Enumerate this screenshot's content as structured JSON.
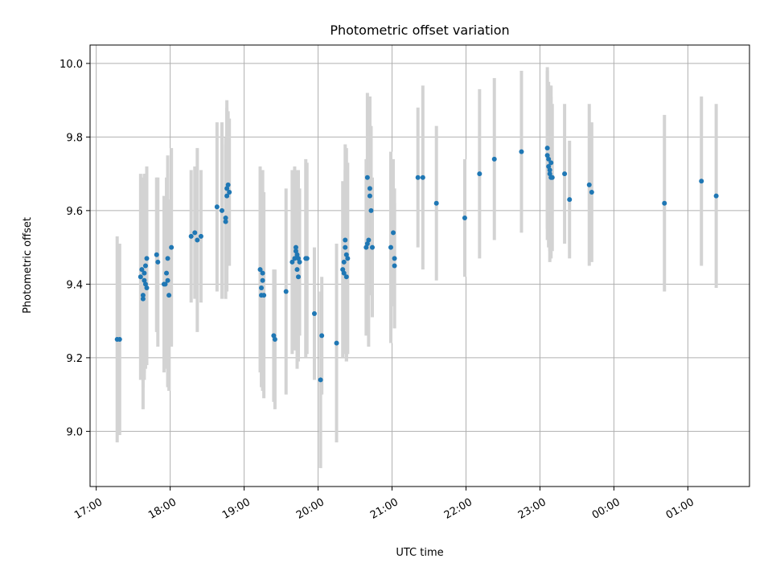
{
  "chart_data": {
    "type": "scatter",
    "title": "Photometric offset variation",
    "xlabel": "UTC time",
    "ylabel": "Photometric offset",
    "xlim": [
      "16:55",
      "01:50"
    ],
    "ylim": [
      8.85,
      10.05
    ],
    "xticks": [
      "17:00",
      "18:00",
      "19:00",
      "20:00",
      "21:00",
      "22:00",
      "23:00",
      "00:00",
      "01:00"
    ],
    "yticks": [
      "9.0",
      "9.2",
      "9.4",
      "9.6",
      "9.8",
      "10.0"
    ],
    "grid": true,
    "colors": {
      "point": "#1f77b4",
      "errorbar": "#d3d3d3",
      "grid": "#b0b0b0"
    },
    "points": [
      {
        "t": "17:17",
        "y": 9.25,
        "err": 0.28
      },
      {
        "t": "17:19",
        "y": 9.25,
        "err": 0.26
      },
      {
        "t": "17:36",
        "y": 9.42,
        "err": 0.28
      },
      {
        "t": "17:37",
        "y": 9.44,
        "err": 0.25
      },
      {
        "t": "17:38",
        "y": 9.37,
        "err": 0.25
      },
      {
        "t": "17:38",
        "y": 9.36,
        "err": 0.3
      },
      {
        "t": "17:39",
        "y": 9.41,
        "err": 0.27
      },
      {
        "t": "17:39",
        "y": 9.43,
        "err": 0.27
      },
      {
        "t": "17:40",
        "y": 9.45,
        "err": 0.25
      },
      {
        "t": "17:40",
        "y": 9.4,
        "err": 0.23
      },
      {
        "t": "17:41",
        "y": 9.47,
        "err": 0.25
      },
      {
        "t": "17:41",
        "y": 9.39,
        "err": 0.21
      },
      {
        "t": "17:49",
        "y": 9.48,
        "err": 0.21
      },
      {
        "t": "17:50",
        "y": 9.46,
        "err": 0.23
      },
      {
        "t": "17:55",
        "y": 9.4,
        "err": 0.24
      },
      {
        "t": "17:56",
        "y": 9.4,
        "err": 0.22
      },
      {
        "t": "17:57",
        "y": 9.43,
        "err": 0.26
      },
      {
        "t": "17:58",
        "y": 9.47,
        "err": 0.28
      },
      {
        "t": "17:58",
        "y": 9.41,
        "err": 0.29
      },
      {
        "t": "17:59",
        "y": 9.37,
        "err": 0.26
      },
      {
        "t": "18:01",
        "y": 9.5,
        "err": 0.27
      },
      {
        "t": "18:17",
        "y": 9.53,
        "err": 0.18
      },
      {
        "t": "18:20",
        "y": 9.54,
        "err": 0.18
      },
      {
        "t": "18:22",
        "y": 9.52,
        "err": 0.25
      },
      {
        "t": "18:25",
        "y": 9.53,
        "err": 0.18
      },
      {
        "t": "18:38",
        "y": 9.61,
        "err": 0.23
      },
      {
        "t": "18:42",
        "y": 9.6,
        "err": 0.24
      },
      {
        "t": "18:45",
        "y": 9.58,
        "err": 0.22
      },
      {
        "t": "18:45",
        "y": 9.57,
        "err": 0.21
      },
      {
        "t": "18:46",
        "y": 9.64,
        "err": 0.26
      },
      {
        "t": "18:46",
        "y": 9.66,
        "err": 0.22
      },
      {
        "t": "18:47",
        "y": 9.67,
        "err": 0.2
      },
      {
        "t": "18:48",
        "y": 9.65,
        "err": 0.2
      },
      {
        "t": "19:13",
        "y": 9.44,
        "err": 0.28
      },
      {
        "t": "19:14",
        "y": 9.39,
        "err": 0.27
      },
      {
        "t": "19:14",
        "y": 9.37,
        "err": 0.25
      },
      {
        "t": "19:15",
        "y": 9.43,
        "err": 0.28
      },
      {
        "t": "19:15",
        "y": 9.41,
        "err": 0.3
      },
      {
        "t": "19:16",
        "y": 9.37,
        "err": 0.28
      },
      {
        "t": "19:24",
        "y": 9.26,
        "err": 0.18
      },
      {
        "t": "19:25",
        "y": 9.25,
        "err": 0.19
      },
      {
        "t": "19:34",
        "y": 9.38,
        "err": 0.28
      },
      {
        "t": "19:39",
        "y": 9.46,
        "err": 0.25
      },
      {
        "t": "19:41",
        "y": 9.47,
        "err": 0.25
      },
      {
        "t": "19:42",
        "y": 9.49,
        "err": 0.22
      },
      {
        "t": "19:42",
        "y": 9.5,
        "err": 0.21
      },
      {
        "t": "19:43",
        "y": 9.44,
        "err": 0.27
      },
      {
        "t": "19:43",
        "y": 9.48,
        "err": 0.2
      },
      {
        "t": "19:44",
        "y": 9.42,
        "err": 0.23
      },
      {
        "t": "19:44",
        "y": 9.47,
        "err": 0.24
      },
      {
        "t": "19:45",
        "y": 9.46,
        "err": 0.2
      },
      {
        "t": "19:50",
        "y": 9.47,
        "err": 0.27
      },
      {
        "t": "19:51",
        "y": 9.47,
        "err": 0.26
      },
      {
        "t": "19:57",
        "y": 9.32,
        "err": 0.18
      },
      {
        "t": "20:02",
        "y": 9.14,
        "err": 0.24
      },
      {
        "t": "20:03",
        "y": 9.26,
        "err": 0.16
      },
      {
        "t": "20:15",
        "y": 9.24,
        "err": 0.27
      },
      {
        "t": "20:20",
        "y": 9.44,
        "err": 0.24
      },
      {
        "t": "20:21",
        "y": 9.46,
        "err": 0.21
      },
      {
        "t": "20:21",
        "y": 9.43,
        "err": 0.22
      },
      {
        "t": "20:22",
        "y": 9.5,
        "err": 0.21
      },
      {
        "t": "20:22",
        "y": 9.52,
        "err": 0.26
      },
      {
        "t": "20:23",
        "y": 9.48,
        "err": 0.29
      },
      {
        "t": "20:23",
        "y": 9.42,
        "err": 0.23
      },
      {
        "t": "20:24",
        "y": 9.47,
        "err": 0.26
      },
      {
        "t": "20:39",
        "y": 9.5,
        "err": 0.24
      },
      {
        "t": "20:40",
        "y": 9.51,
        "err": 0.23
      },
      {
        "t": "20:40",
        "y": 9.69,
        "err": 0.23
      },
      {
        "t": "20:41",
        "y": 9.52,
        "err": 0.29
      },
      {
        "t": "20:42",
        "y": 9.64,
        "err": 0.27
      },
      {
        "t": "20:42",
        "y": 9.66,
        "err": 0.25
      },
      {
        "t": "20:43",
        "y": 9.6,
        "err": 0.23
      },
      {
        "t": "20:44",
        "y": 9.5,
        "err": 0.19
      },
      {
        "t": "20:59",
        "y": 9.5,
        "err": 0.26
      },
      {
        "t": "21:01",
        "y": 9.54,
        "err": 0.2
      },
      {
        "t": "21:02",
        "y": 9.47,
        "err": 0.19
      },
      {
        "t": "21:02",
        "y": 9.45,
        "err": 0.17
      },
      {
        "t": "21:21",
        "y": 9.69,
        "err": 0.19
      },
      {
        "t": "21:25",
        "y": 9.69,
        "err": 0.25
      },
      {
        "t": "21:36",
        "y": 9.62,
        "err": 0.21
      },
      {
        "t": "21:59",
        "y": 9.58,
        "err": 0.16
      },
      {
        "t": "22:11",
        "y": 9.7,
        "err": 0.23
      },
      {
        "t": "22:23",
        "y": 9.74,
        "err": 0.22
      },
      {
        "t": "22:45",
        "y": 9.76,
        "err": 0.22
      },
      {
        "t": "23:06",
        "y": 9.77,
        "err": 0.22
      },
      {
        "t": "23:06",
        "y": 9.75,
        "err": 0.23
      },
      {
        "t": "23:07",
        "y": 9.74,
        "err": 0.21
      },
      {
        "t": "23:07",
        "y": 9.72,
        "err": 0.22
      },
      {
        "t": "23:08",
        "y": 9.71,
        "err": 0.22
      },
      {
        "t": "23:08",
        "y": 9.7,
        "err": 0.24
      },
      {
        "t": "23:09",
        "y": 9.69,
        "err": 0.22
      },
      {
        "t": "23:09",
        "y": 9.73,
        "err": 0.21
      },
      {
        "t": "23:10",
        "y": 9.69,
        "err": 0.2
      },
      {
        "t": "23:20",
        "y": 9.7,
        "err": 0.19
      },
      {
        "t": "23:24",
        "y": 9.63,
        "err": 0.16
      },
      {
        "t": "23:40",
        "y": 9.67,
        "err": 0.22
      },
      {
        "t": "23:42",
        "y": 9.65,
        "err": 0.19
      },
      {
        "t": "00:41",
        "y": 9.62,
        "err": 0.24
      },
      {
        "t": "01:11",
        "y": 9.68,
        "err": 0.23
      },
      {
        "t": "01:23",
        "y": 9.64,
        "err": 0.25
      }
    ]
  }
}
